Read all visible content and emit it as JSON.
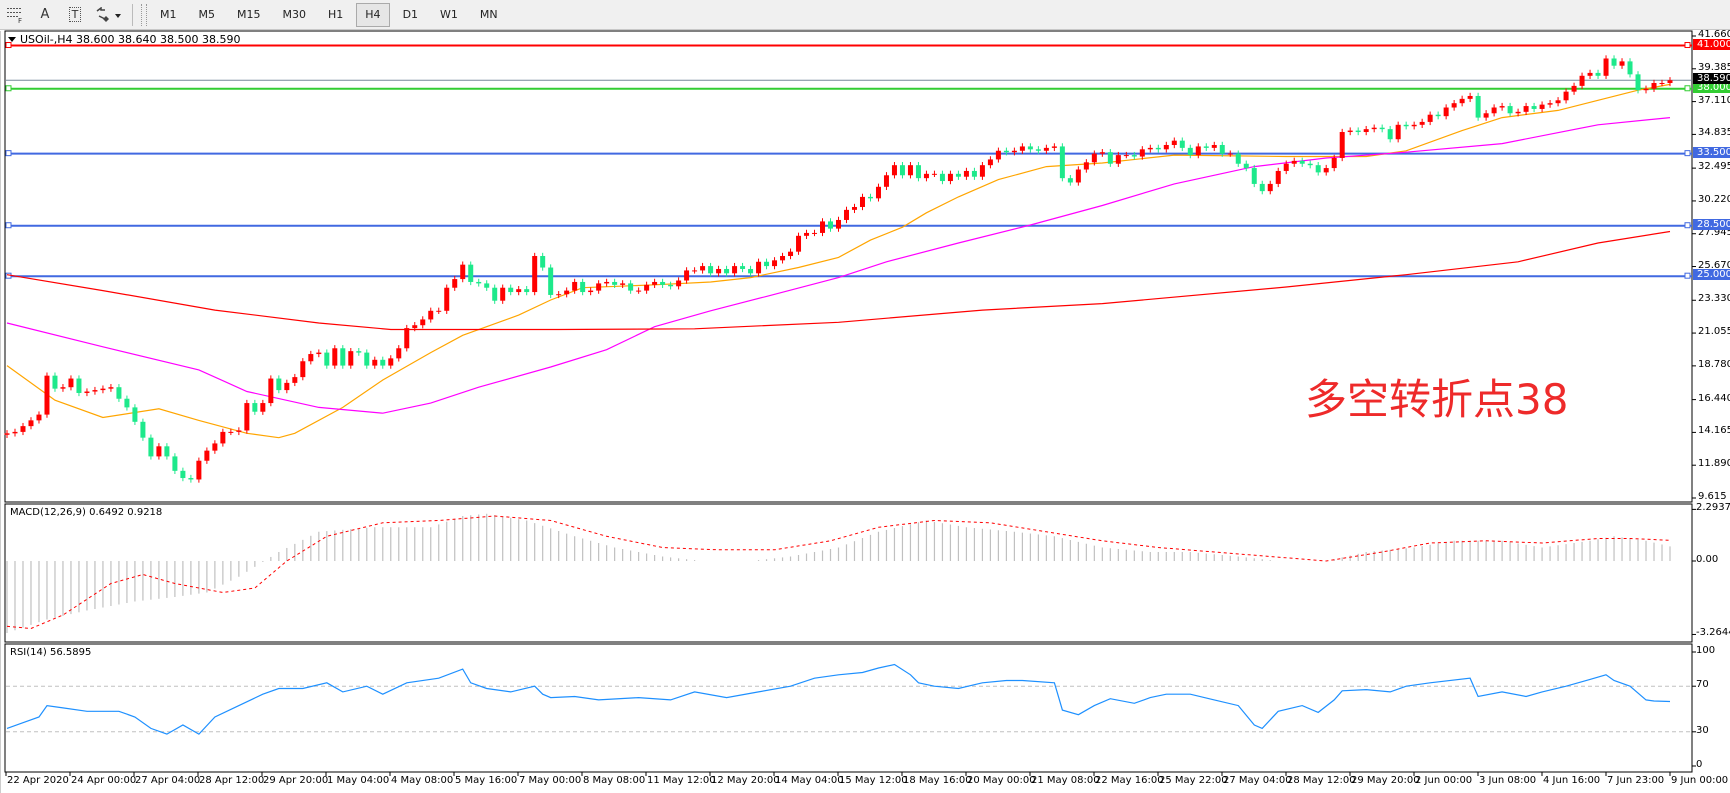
{
  "toolbar": {
    "tools": [
      {
        "icon": "grid-f-icon"
      },
      {
        "icon": "text-a-icon",
        "label": "A"
      },
      {
        "icon": "text-label-icon",
        "label": "T"
      },
      {
        "icon": "arrows-dropdown-icon"
      }
    ],
    "timeframes": [
      "M1",
      "M5",
      "M15",
      "M30",
      "H1",
      "H4",
      "D1",
      "W1",
      "MN"
    ],
    "active_timeframe": "H4"
  },
  "chart": {
    "header": "USOil-,H4  38.600 38.640 38.500 38.590",
    "annotation": "多空转折点38",
    "colors": {
      "bull": "#ff0000",
      "bear": "#1de98b",
      "ma_fast": "#ffa500",
      "ma_mid": "#ff00ff",
      "ma_slow": "#ff0000",
      "macd_hist": "#c0c0c0",
      "macd_signal": "#ff0000",
      "rsi": "#1e90ff"
    }
  },
  "chart_data": [
    {
      "type": "candlestick",
      "symbol": "USOil-",
      "timeframe": "H4",
      "ohlc_last": [
        38.6,
        38.64,
        38.5,
        38.59
      ],
      "first_open": 14.0,
      "closes": [
        14.1,
        14.2,
        14.6,
        15.0,
        15.4,
        18.1,
        17.2,
        17.3,
        17.9,
        16.9,
        17.0,
        17.1,
        17.2,
        17.3,
        16.5,
        15.9,
        14.9,
        13.8,
        12.5,
        13.2,
        12.5,
        11.5,
        11.0,
        10.9,
        12.2,
        12.9,
        13.4,
        14.2,
        14.2,
        14.3,
        16.2,
        15.6,
        16.2,
        17.9,
        17.1,
        17.6,
        18.0,
        19.1,
        19.6,
        19.7,
        18.8,
        20.0,
        18.8,
        19.8,
        19.7,
        18.8,
        19.2,
        18.8,
        19.3,
        20.0,
        21.4,
        21.6,
        22.0,
        22.6,
        22.6,
        24.2,
        24.8,
        25.8,
        24.6,
        24.5,
        24.2,
        23.3,
        24.2,
        23.9,
        24.1,
        23.9,
        26.4,
        25.6,
        23.7,
        23.75,
        24.0,
        24.6,
        23.9,
        24.0,
        24.5,
        24.6,
        24.4,
        24.5,
        24.0,
        24.0,
        24.4,
        24.6,
        24.4,
        24.3,
        24.7,
        25.4,
        25.4,
        25.7,
        25.2,
        25.5,
        25.2,
        25.7,
        25.5,
        25.2,
        26.0,
        25.7,
        26.1,
        26.4,
        26.7,
        27.8,
        28.0,
        28.0,
        28.8,
        28.3,
        28.9,
        29.6,
        29.8,
        30.5,
        30.4,
        31.2,
        32.0,
        32.7,
        32.0,
        32.7,
        31.8,
        32.1,
        32.1,
        31.6,
        32.1,
        31.9,
        32.3,
        31.9,
        32.7,
        33.1,
        33.7,
        33.6,
        33.7,
        34.0,
        33.8,
        33.7,
        33.9,
        34.0,
        31.8,
        31.5,
        32.4,
        32.9,
        33.5,
        33.6,
        32.8,
        33.4,
        33.4,
        33.3,
        33.8,
        33.9,
        33.8,
        34.1,
        34.4,
        33.9,
        33.4,
        34.0,
        33.9,
        34.1,
        33.5,
        33.5,
        32.8,
        32.5,
        31.4,
        30.9,
        31.4,
        32.3,
        32.8,
        33.0,
        32.8,
        32.7,
        32.2,
        32.5,
        33.2,
        35.0,
        35.1,
        35.0,
        35.2,
        35.3,
        35.2,
        34.5,
        35.5,
        35.4,
        35.5,
        35.7,
        36.2,
        36.1,
        36.7,
        37.0,
        37.3,
        37.5,
        36.0,
        36.3,
        36.7,
        36.8,
        36.3,
        36.4,
        36.8,
        36.6,
        36.9,
        37.0,
        37.2,
        37.8,
        38.2,
        38.9,
        39.1,
        38.9,
        40.1,
        39.6,
        39.9,
        39.0,
        37.9,
        38.0,
        38.4,
        38.4,
        38.59
      ],
      "moving_averages": [
        {
          "color": "#ffa500",
          "bars": [
            0,
            6,
            12,
            19,
            24,
            30,
            34,
            36,
            42,
            47,
            53,
            57,
            64,
            68,
            72,
            81,
            88,
            93,
            99,
            104,
            108,
            112,
            115,
            119,
            124,
            130,
            137,
            146,
            160,
            170,
            175,
            182,
            187,
            194,
            199,
            204,
            208
          ],
          "values": [
            18.8,
            16.4,
            15.2,
            15.8,
            15.0,
            14.1,
            13.8,
            14.1,
            15.9,
            17.8,
            19.7,
            20.9,
            22.3,
            23.35,
            24.2,
            24.4,
            24.6,
            24.9,
            25.6,
            26.3,
            27.5,
            28.4,
            29.4,
            30.5,
            31.7,
            32.6,
            32.85,
            33.4,
            33.3,
            33.3,
            33.7,
            35.1,
            36.0,
            36.5,
            37.2,
            37.9,
            38.3
          ]
        },
        {
          "color": "#ff00ff",
          "bars": [
            0,
            12,
            24,
            30,
            39,
            47,
            53,
            59,
            68,
            75,
            81,
            88,
            95,
            104,
            110,
            119,
            128,
            137,
            146,
            156,
            165,
            175,
            187,
            199,
            208
          ],
          "values": [
            21.75,
            20.1,
            18.5,
            17.0,
            15.9,
            15.5,
            16.2,
            17.3,
            18.7,
            19.9,
            21.5,
            22.6,
            23.6,
            24.9,
            26.0,
            27.3,
            28.55,
            29.9,
            31.4,
            32.6,
            33.2,
            33.6,
            34.2,
            35.5,
            36.0
          ]
        },
        {
          "color": "#ff0000",
          "bars": [
            0,
            12,
            26,
            39,
            48,
            69,
            86,
            104,
            122,
            137,
            160,
            175,
            189,
            199,
            208
          ],
          "values": [
            25.1,
            24.0,
            22.65,
            21.75,
            21.3,
            21.3,
            21.35,
            21.8,
            22.65,
            23.1,
            24.25,
            25.1,
            26.0,
            27.3,
            28.1
          ]
        }
      ],
      "horizontal_levels": [
        {
          "price": 41.0,
          "label": "41.000",
          "color": "#ff0000"
        },
        {
          "price": 38.0,
          "label": "38.000",
          "color": "#32cd32"
        },
        {
          "price": 33.5,
          "label": "33.500",
          "color": "#4169e1"
        },
        {
          "price": 28.5,
          "label": "28.500",
          "color": "#4169e1"
        },
        {
          "price": 25.0,
          "label": "25.000",
          "color": "#4169e1"
        }
      ],
      "bid_line": {
        "price": 38.59,
        "label": "38.590"
      },
      "ylim": [
        9.615,
        41.66
      ],
      "y_ticks": [
        "41.660",
        "39.385",
        "37.110",
        "34.835",
        "32.495",
        "30.220",
        "27.945",
        "25.670",
        "23.330",
        "21.055",
        "18.780",
        "16.440",
        "14.165",
        "11.890",
        "9.615"
      ],
      "x_tick_labels": [
        "22 Apr 2020",
        "24 Apr 00:00",
        "27 Apr 04:00",
        "28 Apr 12:00",
        "29 Apr 20:00",
        "1 May 04:00",
        "4 May 08:00",
        "5 May 16:00",
        "7 May 00:00",
        "8 May 08:00",
        "11 May 12:00",
        "12 May 20:00",
        "14 May 04:00",
        "15 May 12:00",
        "18 May 16:00",
        "20 May 00:00",
        "21 May 08:00",
        "22 May 16:00",
        "25 May 22:00",
        "27 May 04:00",
        "28 May 12:00",
        "29 May 20:00",
        "2 Jun 00:00",
        "3 Jun 08:00",
        "4 Jun 16:00",
        "7 Jun 23:00",
        "9 Jun 00:00"
      ]
    },
    {
      "type": "bar",
      "title": "MACD(12,26,9) 0.6492 0.9218",
      "histogram": {
        "bars": [
          0,
          5,
          10,
          16,
          21,
          25,
          29,
          34,
          39,
          46,
          53,
          57,
          60,
          65,
          71,
          76,
          82,
          87,
          93,
          98,
          104,
          109,
          115,
          120,
          126,
          131,
          137,
          143,
          148,
          154,
          159,
          165,
          170,
          176,
          181,
          187,
          192,
          198,
          201,
          205,
          208
        ],
        "values": [
          -3.2,
          -2.6,
          -2.2,
          -1.8,
          -1.6,
          -1.4,
          -0.7,
          0.4,
          1.3,
          1.5,
          1.5,
          2.0,
          2.1,
          1.8,
          1.1,
          0.6,
          0.2,
          0,
          0,
          0.2,
          0.6,
          1.3,
          1.8,
          1.5,
          1.3,
          1.1,
          0.6,
          0.4,
          0.4,
          0.2,
          0,
          0,
          0.4,
          0.6,
          0.9,
          0.9,
          0.6,
          0.9,
          1.1,
          0.9,
          0.6492
        ]
      },
      "signal": {
        "bars": [
          0,
          3,
          7,
          13,
          17,
          21,
          27,
          31,
          35,
          40,
          47,
          54,
          61,
          68,
          75,
          82,
          89,
          96,
          103,
          109,
          116,
          123,
          130,
          137,
          144,
          151,
          158,
          165,
          172,
          178,
          185,
          192,
          199,
          203,
          208
        ],
        "values": [
          -2.9,
          -3.0,
          -2.4,
          -1.0,
          -0.6,
          -1.0,
          -1.4,
          -1.2,
          0,
          1.1,
          1.7,
          1.8,
          2.0,
          1.8,
          1.1,
          0.6,
          0.5,
          0.5,
          0.9,
          1.5,
          1.8,
          1.7,
          1.3,
          0.9,
          0.6,
          0.4,
          0.2,
          0,
          0.4,
          0.8,
          0.9,
          0.8,
          1.0,
          1.0,
          0.9218
        ]
      },
      "ylim": [
        -3.2644,
        2.2937
      ],
      "y_ticks": [
        "2.2937",
        "0.00",
        "-3.2644"
      ]
    },
    {
      "type": "line",
      "title": "RSI(14) 56.5895",
      "bars": [
        0,
        2,
        4,
        5,
        7,
        10,
        14,
        16,
        18,
        20,
        22,
        24,
        26,
        29,
        32,
        34,
        37,
        40,
        42,
        45,
        47,
        50,
        54,
        57,
        58,
        60,
        63,
        66,
        67,
        68,
        71,
        74,
        79,
        83,
        86,
        90,
        94,
        98,
        101,
        104,
        107,
        109,
        111,
        113,
        114,
        116,
        119,
        122,
        125,
        127,
        131,
        132,
        134,
        136,
        138,
        141,
        143,
        145,
        148,
        151,
        154,
        156,
        157,
        159,
        162,
        164,
        166,
        167,
        170,
        173,
        175,
        178,
        183,
        184,
        187,
        190,
        192,
        195,
        198,
        200,
        201,
        203,
        205,
        206,
        208
      ],
      "values": [
        33,
        38,
        43,
        53,
        51,
        48,
        48,
        43,
        33,
        28,
        36,
        28,
        43,
        53,
        63,
        68,
        68,
        73,
        65,
        70,
        63,
        73,
        77,
        85,
        73,
        68,
        65,
        70,
        63,
        60,
        61,
        58,
        60,
        58,
        65,
        60,
        65,
        70,
        77,
        80,
        82,
        86,
        89,
        80,
        73,
        70,
        68,
        73,
        75,
        75,
        73,
        49,
        45,
        53,
        59,
        55,
        60,
        63,
        63,
        58,
        53,
        36,
        33,
        48,
        53,
        47,
        58,
        66,
        67,
        65,
        70,
        73,
        77,
        61,
        65,
        61,
        65,
        70,
        76,
        80,
        75,
        70,
        58,
        57,
        56.5895
      ],
      "ylim": [
        0,
        100
      ],
      "levels": [
        70,
        30
      ],
      "y_ticks": [
        "100",
        "70",
        "30",
        "0"
      ]
    }
  ]
}
